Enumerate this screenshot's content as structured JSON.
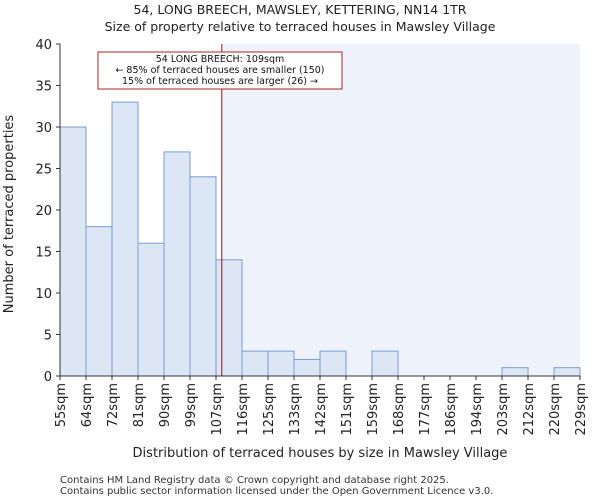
{
  "title_line1": "54, LONG BREECH, MAWSLEY, KETTERING, NN14 1TR",
  "title_line2": "Size of property relative to terraced houses in Mawsley Village",
  "footer_line1": "Contains HM Land Registry data © Crown copyright and database right 2025.",
  "footer_line2": "Contains public sector information licensed under the Open Government Licence v3.0.",
  "colors": {
    "bar_fill": "#dce6f5",
    "bar_stroke": "#7d9bd1",
    "highlight_bg": "#eef2fb",
    "marker_line": "#8b1a1a",
    "annotation_border": "#b22222"
  },
  "chart_data": {
    "type": "bar",
    "xlabel": "Distribution of terraced houses by size in Mawsley Village",
    "ylabel": "Number of terraced properties",
    "ylim": [
      0,
      40
    ],
    "yticks": [
      0,
      5,
      10,
      15,
      20,
      25,
      30,
      35,
      40
    ],
    "bin_edges": [
      55,
      64,
      72,
      81,
      90,
      99,
      107,
      116,
      125,
      133,
      142,
      151,
      159,
      168,
      177,
      186,
      194,
      203,
      212,
      220,
      229
    ],
    "tick_labels": [
      "55sqm",
      "64sqm",
      "72sqm",
      "81sqm",
      "90sqm",
      "99sqm",
      "107sqm",
      "116sqm",
      "125sqm",
      "133sqm",
      "142sqm",
      "151sqm",
      "159sqm",
      "168sqm",
      "177sqm",
      "186sqm",
      "194sqm",
      "203sqm",
      "212sqm",
      "220sqm",
      "229sqm"
    ],
    "values": [
      30,
      18,
      33,
      16,
      27,
      24,
      14,
      3,
      3,
      2,
      3,
      0,
      3,
      0,
      0,
      0,
      0,
      1,
      0,
      1
    ],
    "property_value": 109,
    "annotation": {
      "line1": "54 LONG BREECH: 109sqm",
      "line2": "← 85% of terraced houses are smaller (150)",
      "line3": "15% of terraced houses are larger (26) →"
    }
  }
}
